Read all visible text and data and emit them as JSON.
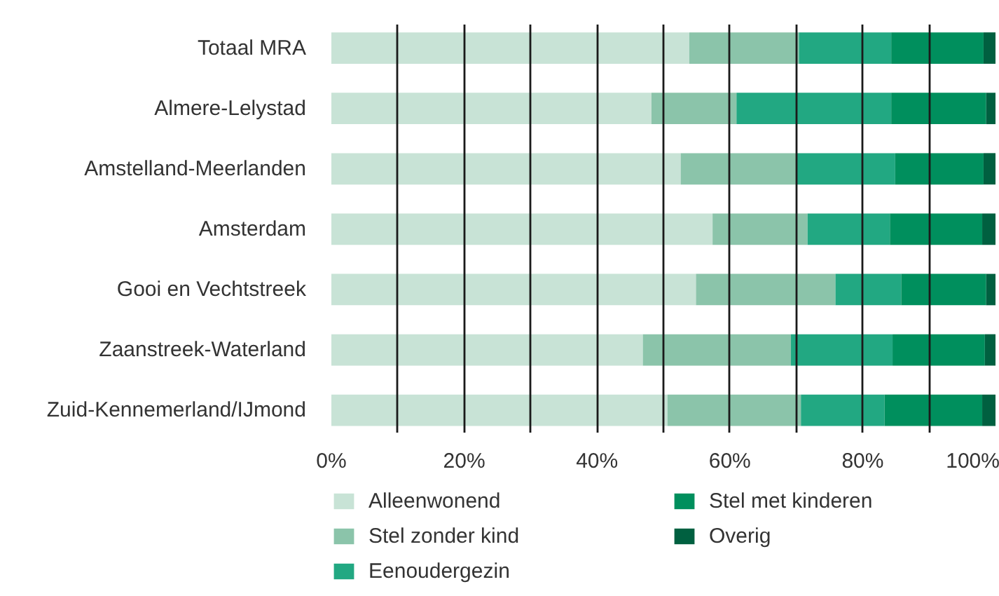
{
  "chart_data": {
    "type": "bar",
    "orientation": "horizontal",
    "stacked": true,
    "categories": [
      "Totaal MRA",
      "Almere-Lelystad",
      "Amstelland-Meerlanden",
      "Amsterdam",
      "Gooi en Vechtstreek",
      "Zaanstreek-Waterland",
      "Zuid-Kennemerland/IJmond"
    ],
    "series": [
      {
        "name": "Alleenwonend",
        "color": "#c8e3d6",
        "values": [
          53.9,
          48.2,
          52.6,
          57.4,
          54.9,
          46.9,
          50.6
        ]
      },
      {
        "name": "Stel zonder kind",
        "color": "#8bc4aa",
        "values": [
          16.5,
          12.8,
          17.4,
          14.3,
          21.0,
          22.3,
          20.1
        ]
      },
      {
        "name": "Eenoudergezin",
        "color": "#22a882",
        "values": [
          13.9,
          23.3,
          14.9,
          12.4,
          9.9,
          15.3,
          12.6
        ]
      },
      {
        "name": "Stel met kinderen",
        "color": "#008f5d",
        "values": [
          13.9,
          14.3,
          13.3,
          13.9,
          12.8,
          13.9,
          14.7
        ]
      },
      {
        "name": "Overig",
        "color": "#006040",
        "values": [
          1.8,
          1.4,
          1.8,
          2.0,
          1.4,
          1.6,
          2.0
        ]
      }
    ],
    "xlim": [
      0,
      100
    ],
    "xticks": [
      {
        "value": 0,
        "label": "0%"
      },
      {
        "value": 10,
        "label": null
      },
      {
        "value": 20,
        "label": "20%"
      },
      {
        "value": 30,
        "label": null
      },
      {
        "value": 40,
        "label": "40%"
      },
      {
        "value": 50,
        "label": null
      },
      {
        "value": 60,
        "label": "60%"
      },
      {
        "value": 70,
        "label": null
      },
      {
        "value": 80,
        "label": "80%"
      },
      {
        "value": 90,
        "label": null
      },
      {
        "value": 100,
        "label": "100%"
      }
    ],
    "grid": "x",
    "legend": "bottom"
  }
}
